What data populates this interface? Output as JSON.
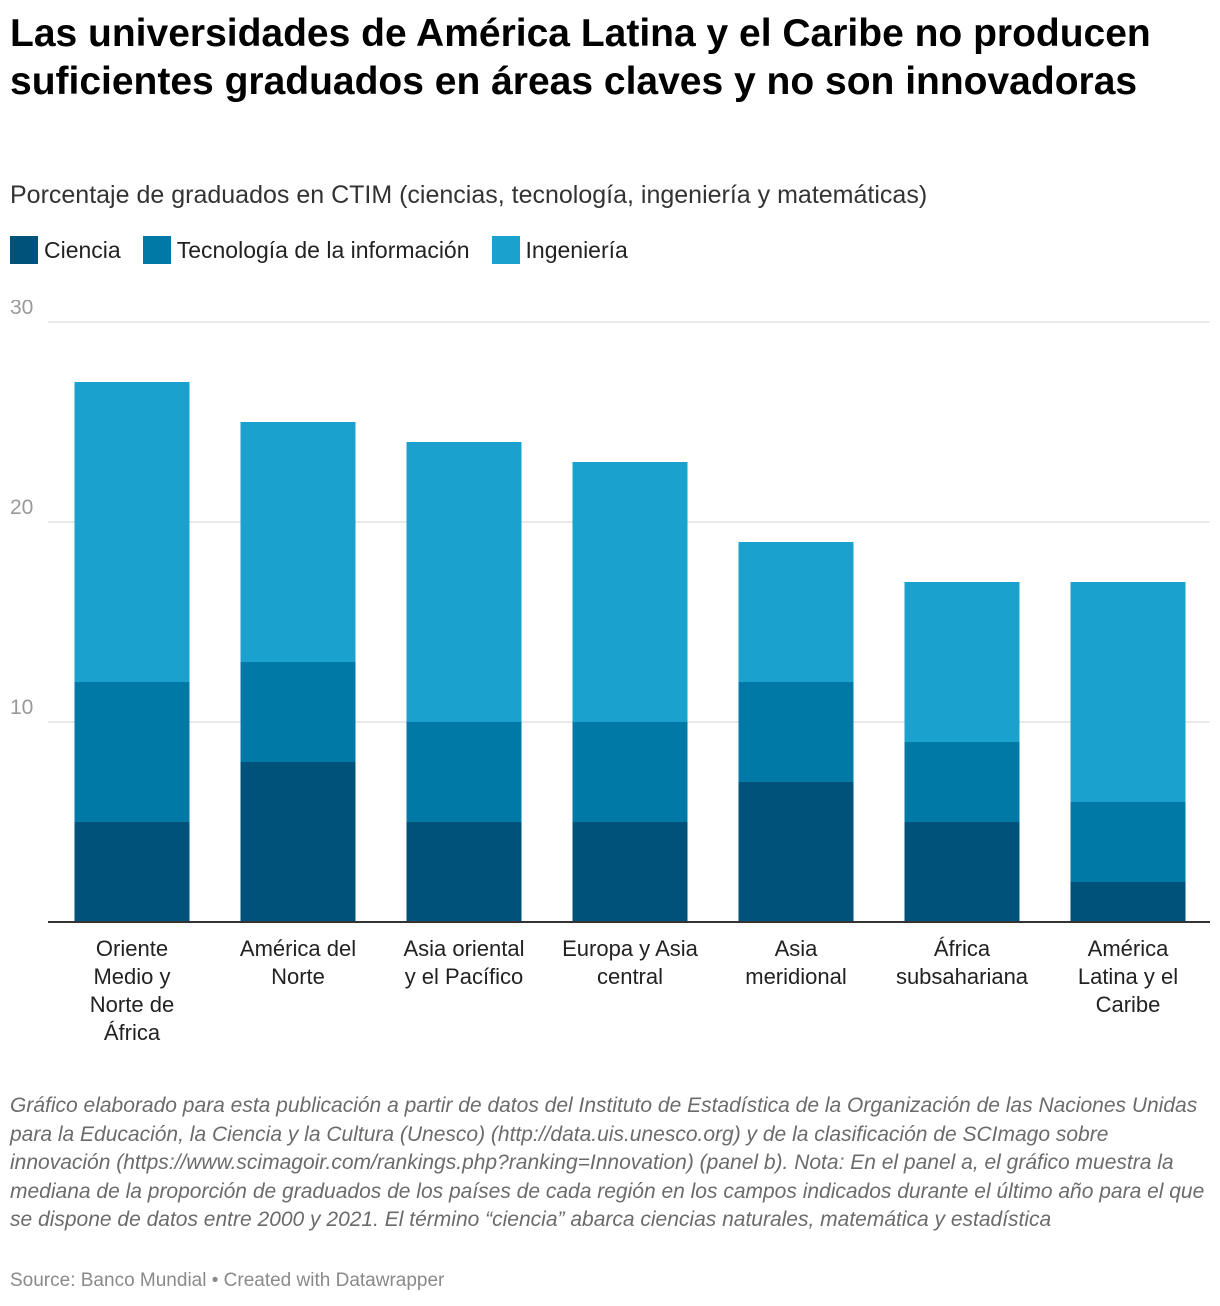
{
  "page": {
    "title": "Las universidades de América Latina y el Caribe no producen suficientes graduados en áreas claves y no son innovadoras",
    "subtitle": "Porcentaje de graduados en CTIM (ciencias, tecnología, ingeniería y matemáticas)",
    "notes": "Gráfico elaborado para esta publicación a partir de datos del Instituto de Estadística de la Organización de las Naciones Unidas para la Educación, la Ciencia y la Cultura (Unesco) (http://data.uis.unesco.org) y de la clasificación de SCImago sobre innovación (https://www.scimagoir.com/rankings.php?ranking=Innovation) (panel b). Nota: En el panel a, el gráfico muestra la mediana de la proporción de graduados de los países de cada región en los campos indicados durante el último año para el que se dispone de datos entre 2000 y 2021. El término “ciencia” abarca ciencias naturales, matemática y estadística",
    "source": "Source: Banco Mundial • Created with Datawrapper"
  },
  "chart_data": {
    "type": "bar",
    "stacked": true,
    "title": "Las universidades de América Latina y el Caribe no producen suficientes graduados en áreas claves y no son innovadoras",
    "subtitle": "Porcentaje de graduados en CTIM (ciencias, tecnología, ingeniería y matemáticas)",
    "xlabel": "",
    "ylabel": "",
    "ylim": [
      0,
      30
    ],
    "yticks": [
      10,
      20,
      30
    ],
    "grid": true,
    "legend_position": "top-left",
    "categories": [
      [
        "Oriente",
        "Medio y",
        "Norte de",
        "África"
      ],
      [
        "América del",
        "Norte"
      ],
      [
        "Asia oriental",
        "y el Pacífico"
      ],
      [
        "Europa y Asia",
        "central"
      ],
      [
        "Asia",
        "meridional"
      ],
      [
        "África",
        "subsahariana"
      ],
      [
        "América",
        "Latina y el",
        "Caribe"
      ]
    ],
    "series": [
      {
        "name": "Ciencia",
        "color": "#00527a",
        "values": [
          5,
          8,
          5,
          5,
          7,
          5,
          2
        ]
      },
      {
        "name": "Tecnología de la información",
        "color": "#0079a6",
        "values": [
          7,
          5,
          5,
          5,
          5,
          4,
          4
        ]
      },
      {
        "name": "Ingeniería",
        "color": "#1aa1cd",
        "values": [
          15,
          12,
          14,
          13,
          7,
          8,
          11
        ]
      }
    ]
  }
}
